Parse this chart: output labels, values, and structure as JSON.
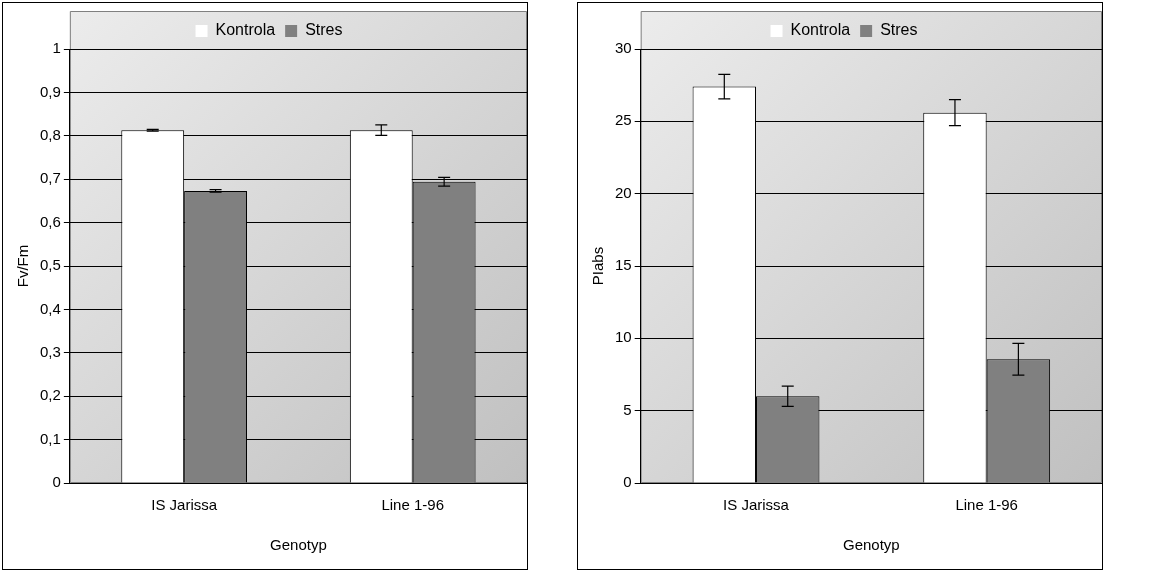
{
  "chart_data": [
    {
      "type": "bar",
      "xlabel": "Genotyp",
      "ylabel": "Fv/Fm",
      "categories": [
        "IS Jarissa",
        "Line 1-96"
      ],
      "series": [
        {
          "name": "Kontrola",
          "color": "#ffffff",
          "values": [
            0.813,
            0.813
          ],
          "errors": [
            0.002,
            0.012
          ]
        },
        {
          "name": "Stres",
          "color": "#808080",
          "values": [
            0.673,
            0.694
          ],
          "errors": [
            0.003,
            0.01
          ]
        }
      ],
      "ylim": [
        0,
        1
      ],
      "yticks": [
        0,
        {
          "value": 0.1,
          "label": "0,1"
        },
        {
          "value": 0.2,
          "label": "0,2"
        },
        {
          "value": 0.3,
          "label": "0,3"
        },
        {
          "value": 0.4,
          "label": "0,4"
        },
        {
          "value": 0.5,
          "label": "0,5"
        },
        {
          "value": 0.6,
          "label": "0,6"
        },
        {
          "value": 0.7,
          "label": "0,7"
        },
        {
          "value": 0.8,
          "label": "0,8"
        },
        {
          "value": 0.9,
          "label": "0,9"
        },
        1
      ],
      "grid": "y",
      "legend": "top"
    },
    {
      "type": "bar",
      "xlabel": "Genotyp",
      "ylabel": "PIabs",
      "categories": [
        "IS Jarissa",
        "Line 1-96"
      ],
      "series": [
        {
          "name": "Kontrola",
          "color": "#ffffff",
          "values": [
            27.4,
            25.6
          ],
          "errors": [
            0.85,
            0.9
          ]
        },
        {
          "name": "Stres",
          "color": "#808080",
          "values": [
            6.0,
            8.55
          ],
          "errors": [
            0.7,
            1.1
          ]
        }
      ],
      "ylim": [
        0,
        30
      ],
      "yticks": [
        0,
        5,
        10,
        15,
        20,
        25,
        30
      ],
      "grid": "y",
      "legend": "top"
    }
  ]
}
